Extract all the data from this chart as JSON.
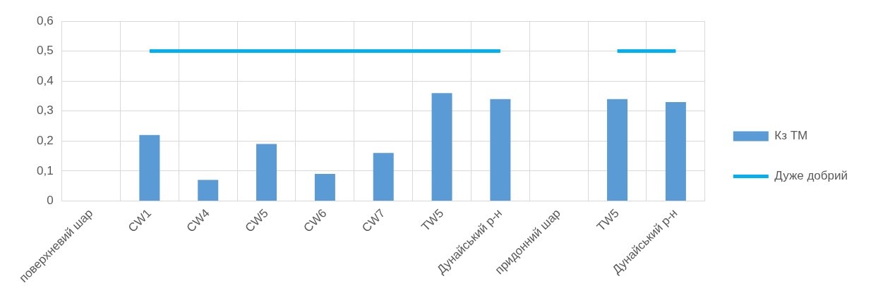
{
  "chart_data": {
    "type": "bar",
    "categories": [
      "поверхневий шар",
      "CW1",
      "CW4",
      "CW5",
      "CW6",
      "CW7",
      "TW5",
      "Дунайський р-н",
      "придонний шар",
      "TW5",
      "Дунайський р-н"
    ],
    "series": [
      {
        "name": "Кз ТМ",
        "color": "#5b9bd5",
        "values": [
          null,
          0.22,
          0.07,
          0.19,
          0.09,
          0.16,
          0.36,
          0.34,
          null,
          0.34,
          0.33
        ]
      },
      {
        "name": "Дуже добрий",
        "type": "line",
        "color": "#00b0f0",
        "values": [
          null,
          0.5,
          0.5,
          0.5,
          0.5,
          0.5,
          0.5,
          0.5,
          null,
          0.5,
          0.5
        ]
      }
    ],
    "ylim": [
      0,
      0.6
    ],
    "yticks": [
      {
        "value": 0,
        "label": "0"
      },
      {
        "value": 0.1,
        "label": "0,1"
      },
      {
        "value": 0.2,
        "label": "0,2"
      },
      {
        "value": 0.3,
        "label": "0,3"
      },
      {
        "value": 0.4,
        "label": "0,4"
      },
      {
        "value": 0.5,
        "label": "0,5"
      },
      {
        "value": 0.6,
        "label": "0,6"
      }
    ],
    "grid": true,
    "legend": "right"
  }
}
